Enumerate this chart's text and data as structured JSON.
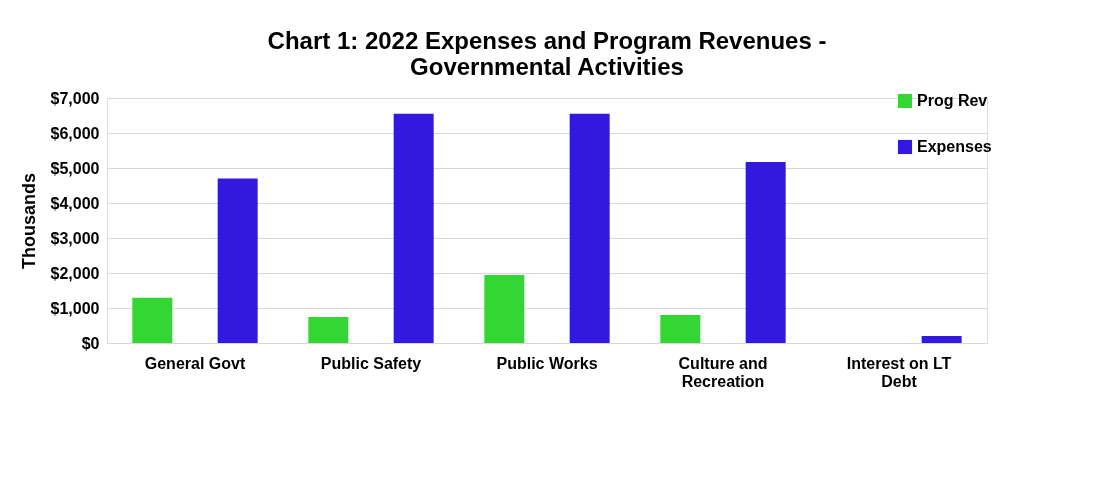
{
  "chart_data": {
    "type": "bar",
    "title": "Chart 1:  2022 Expenses and Program Revenues - Governmental Activities",
    "ylabel": "Thousands",
    "categories": [
      "General Govt",
      "Public Safety",
      "Public Works",
      "Culture and Recreation",
      "Interest on LT Debt"
    ],
    "series": [
      {
        "name": "Prog Rev",
        "color": "#33d633",
        "values": [
          1290,
          740,
          1940,
          800,
          0
        ]
      },
      {
        "name": "Expenses",
        "color": "#3319de",
        "values": [
          4700,
          6550,
          6550,
          5170,
          200
        ]
      }
    ],
    "ylim": [
      0,
      7000
    ],
    "yticks": [
      {
        "value": 0,
        "label": "$0"
      },
      {
        "value": 1000,
        "label": "$1,000"
      },
      {
        "value": 2000,
        "label": "$2,000"
      },
      {
        "value": 3000,
        "label": "$3,000"
      },
      {
        "value": 4000,
        "label": "$4,000"
      },
      {
        "value": 5000,
        "label": "$5,000"
      },
      {
        "value": 6000,
        "label": "$6,000"
      },
      {
        "value": 7000,
        "label": "$7,000"
      }
    ],
    "grid": "y",
    "legend": "top right"
  }
}
